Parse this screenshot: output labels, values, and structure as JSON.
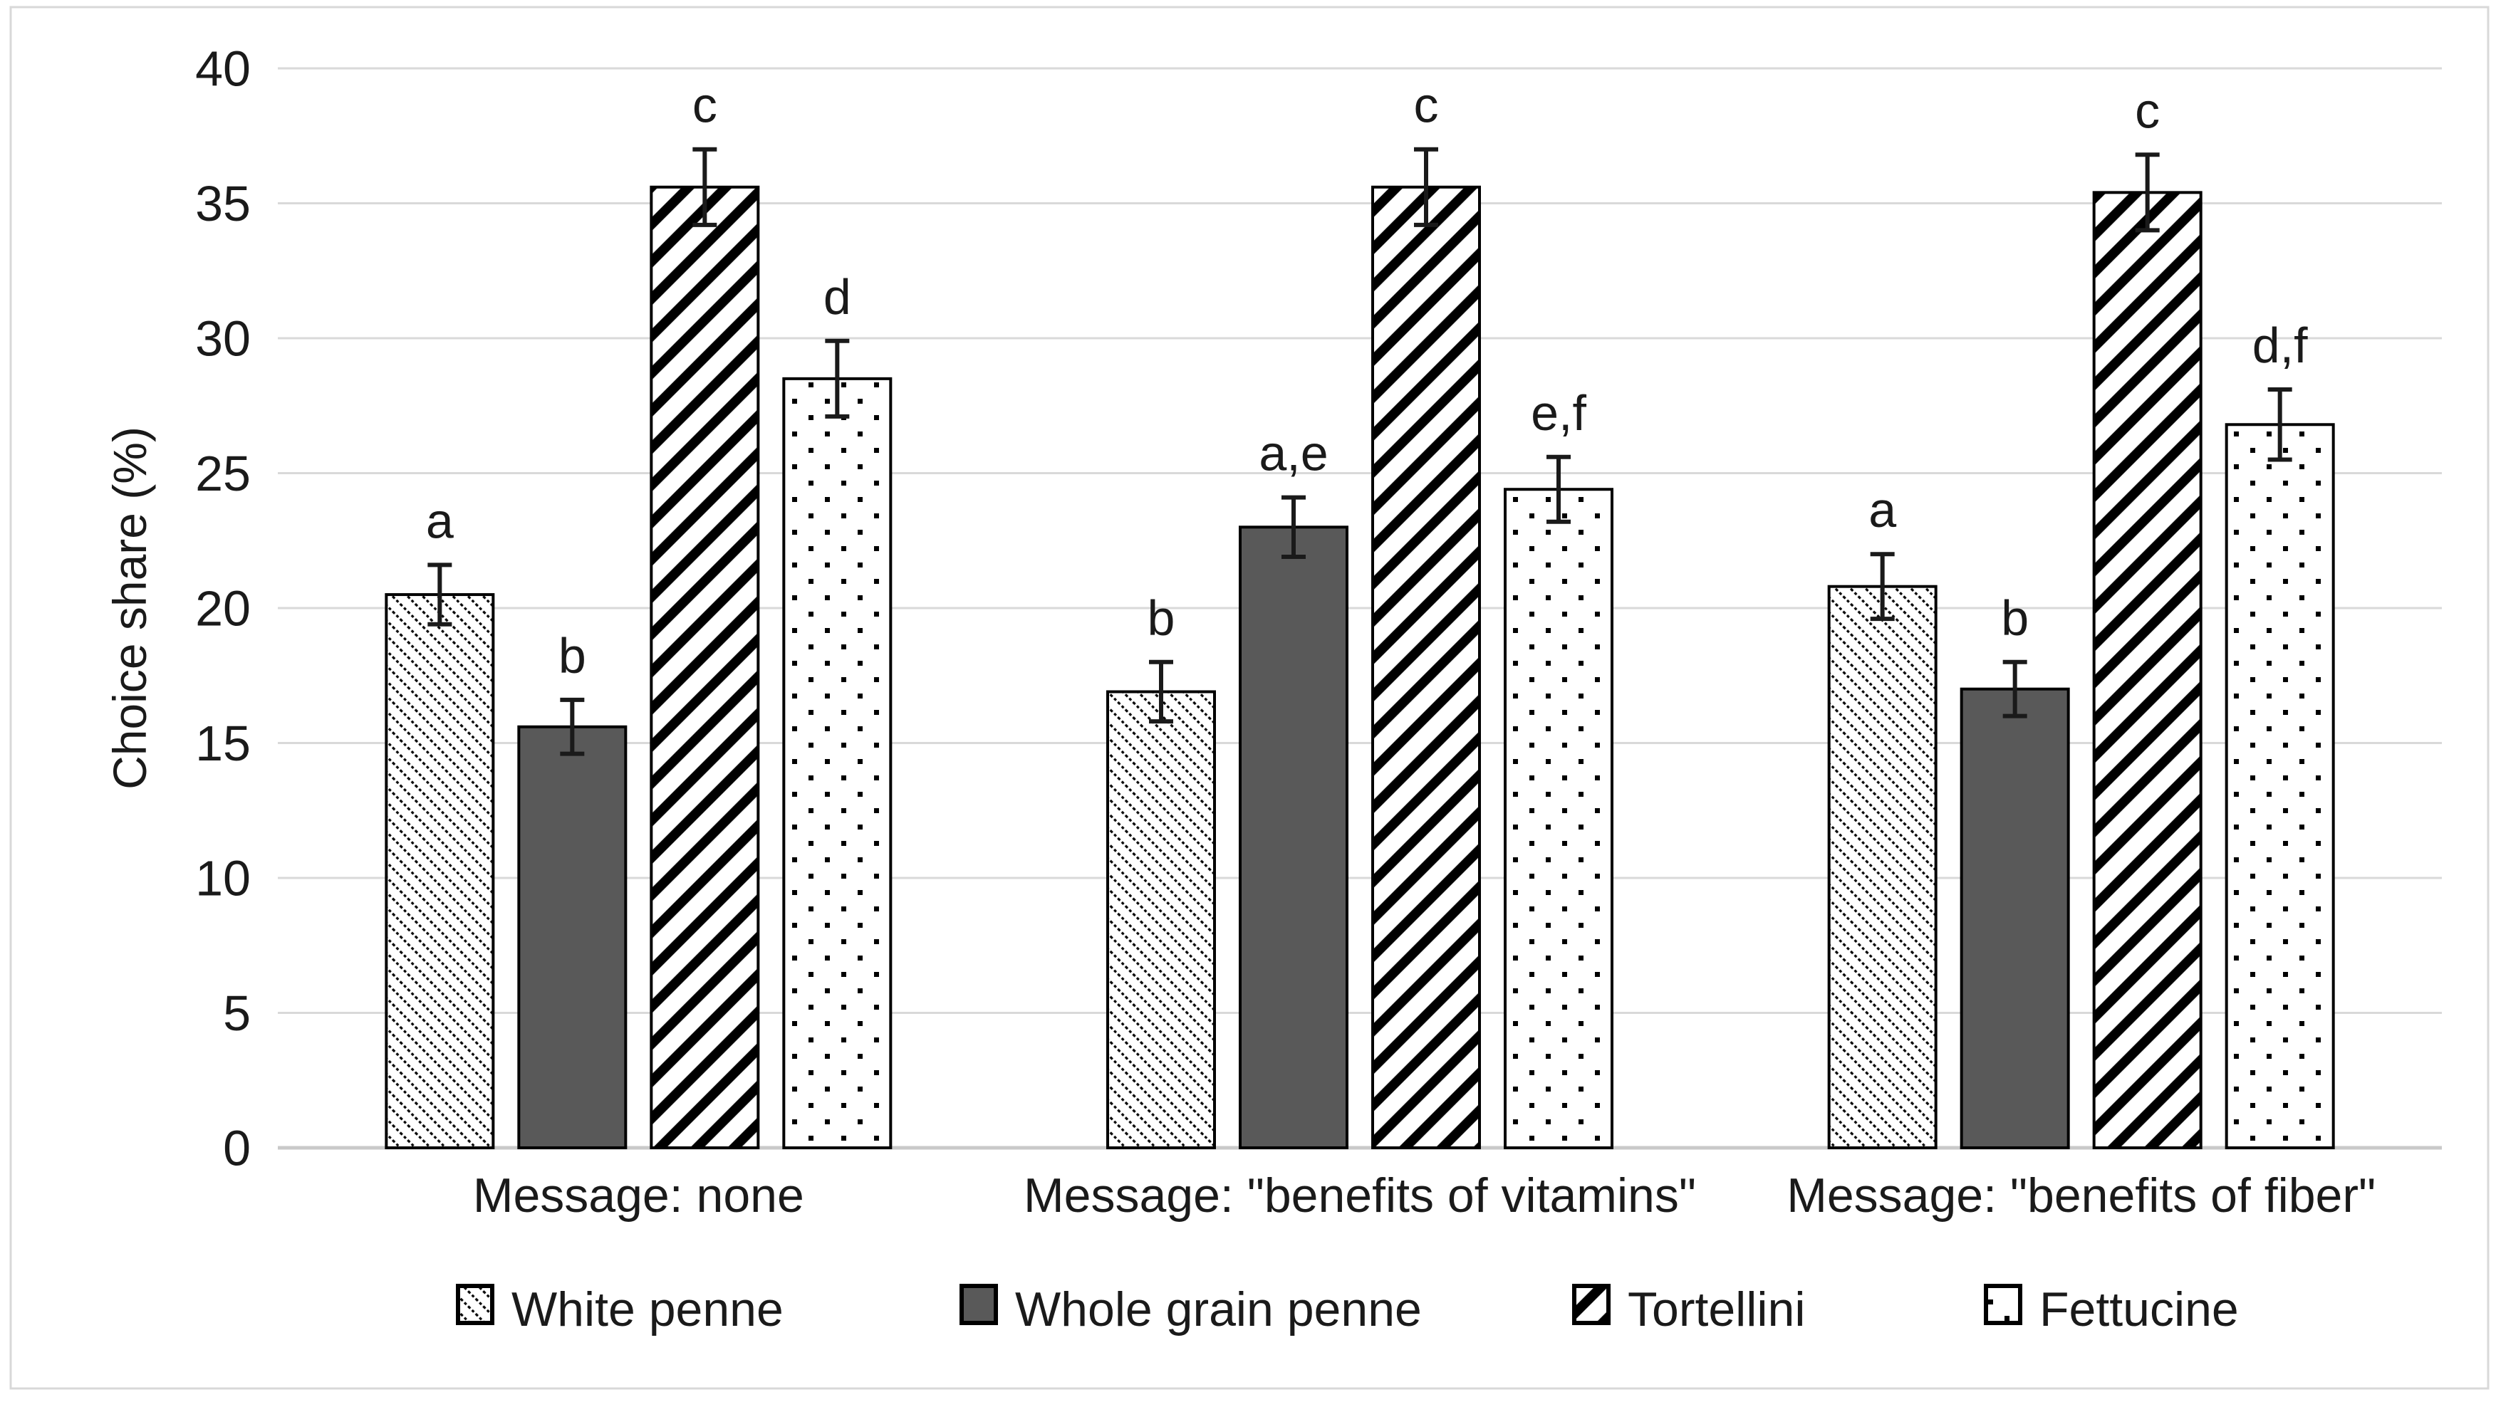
{
  "chart_data": {
    "type": "bar",
    "title": "",
    "ylabel": "Choice share (%)",
    "xlabel": "",
    "ylim": [
      0,
      40
    ],
    "yticks": [
      0,
      5,
      10,
      15,
      20,
      25,
      30,
      35,
      40
    ],
    "grid": "horizontal",
    "legend_position": "bottom",
    "categories": [
      "Message: none",
      "Message: \"benefits of vitamins\"",
      "Message: \"benefits of fiber\""
    ],
    "series": [
      {
        "name": "White penne",
        "pattern": "diagonal-dotted-down",
        "values": [
          20.5,
          16.9,
          20.8
        ],
        "errors": [
          1.1,
          1.1,
          1.2
        ],
        "letters": [
          "a",
          "b",
          "a"
        ]
      },
      {
        "name": "Whole grain penne",
        "pattern": "solid-gray",
        "values": [
          15.6,
          23.0,
          17.0
        ],
        "errors": [
          1.0,
          1.1,
          1.0
        ],
        "letters": [
          "b",
          "a,e",
          "b"
        ]
      },
      {
        "name": "Tortellini",
        "pattern": "diagonal-stripes-up",
        "values": [
          35.6,
          35.6,
          35.4
        ],
        "errors": [
          1.4,
          1.4,
          1.4
        ],
        "letters": [
          "c",
          "c",
          "c"
        ]
      },
      {
        "name": "Fettucine",
        "pattern": "dots",
        "values": [
          28.5,
          24.4,
          26.8
        ],
        "errors": [
          1.4,
          1.2,
          1.3
        ],
        "letters": [
          "d",
          "e,f",
          "d,f"
        ]
      }
    ],
    "colors": {
      "bar_outline": "#000000",
      "solid_bar_fill": "#595959",
      "gridline": "#d9d9d9",
      "baseline": "#c9c9c9",
      "text": "#1a1a1a",
      "frame_border": "#d8d8d8",
      "background": "#ffffff"
    }
  }
}
